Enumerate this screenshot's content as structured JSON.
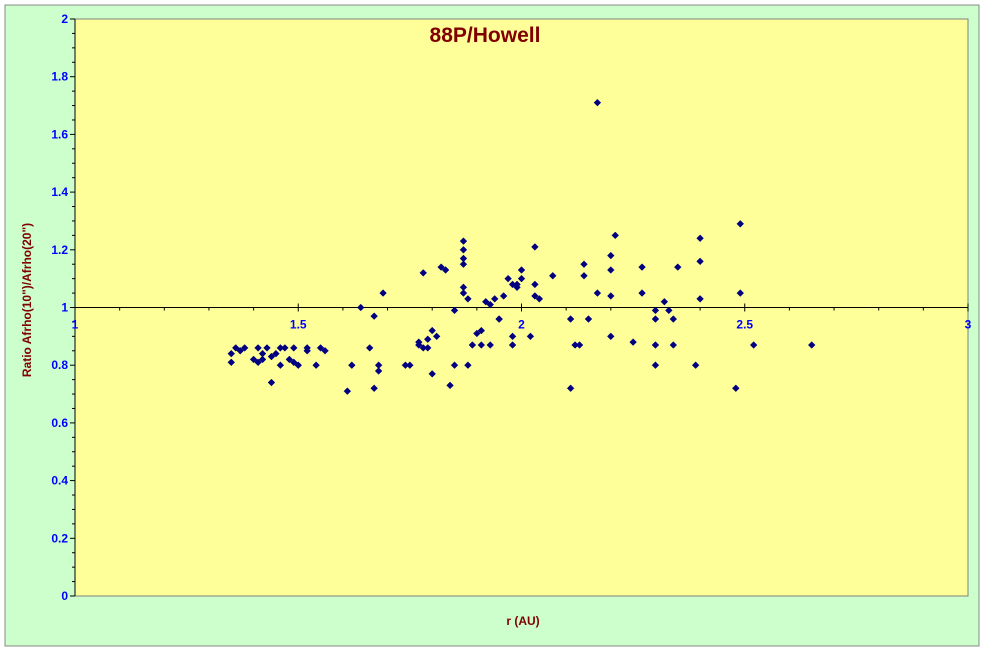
{
  "colors": {
    "outer_background": "#ccffcc",
    "plot_background": "#ffff99",
    "axis_label": "#800000",
    "tick_label": "#0000ff",
    "marker": "#000080",
    "reference_line": "#000000"
  },
  "chart_data": {
    "type": "scatter",
    "title": "88P/Howell",
    "xlabel": "r (AU)",
    "ylabel": "Ratio Afrho(10\")/Afrho(20\")",
    "xlim": [
      1,
      3
    ],
    "ylim": [
      0,
      2
    ],
    "x_ticks": [
      {
        "value": 1,
        "label": "1"
      },
      {
        "value": 1.5,
        "label": "1.5"
      },
      {
        "value": 2,
        "label": "2"
      },
      {
        "value": 2.5,
        "label": "2.5"
      },
      {
        "value": 3,
        "label": "3"
      }
    ],
    "y_ticks": [
      {
        "value": 0,
        "label": "0"
      },
      {
        "value": 0.2,
        "label": "0.2"
      },
      {
        "value": 0.4,
        "label": "0.4"
      },
      {
        "value": 0.6,
        "label": "0.6"
      },
      {
        "value": 0.8,
        "label": "0.8"
      },
      {
        "value": 1,
        "label": "1"
      },
      {
        "value": 1.2,
        "label": "1.2"
      },
      {
        "value": 1.4,
        "label": "1.4"
      },
      {
        "value": 1.6,
        "label": "1.6"
      },
      {
        "value": 1.8,
        "label": "1.8"
      },
      {
        "value": 2,
        "label": "2"
      }
    ],
    "x_axis_crosses_at_y": 1,
    "grid": false,
    "legend": "none",
    "marker": "diamond",
    "points": [
      {
        "x": 1.35,
        "y": 0.81
      },
      {
        "x": 1.35,
        "y": 0.84
      },
      {
        "x": 1.36,
        "y": 0.86
      },
      {
        "x": 1.37,
        "y": 0.85
      },
      {
        "x": 1.38,
        "y": 0.86
      },
      {
        "x": 1.4,
        "y": 0.82
      },
      {
        "x": 1.41,
        "y": 0.81
      },
      {
        "x": 1.41,
        "y": 0.86
      },
      {
        "x": 1.42,
        "y": 0.84
      },
      {
        "x": 1.42,
        "y": 0.82
      },
      {
        "x": 1.43,
        "y": 0.86
      },
      {
        "x": 1.44,
        "y": 0.83
      },
      {
        "x": 1.44,
        "y": 0.74
      },
      {
        "x": 1.45,
        "y": 0.84
      },
      {
        "x": 1.46,
        "y": 0.86
      },
      {
        "x": 1.46,
        "y": 0.8
      },
      {
        "x": 1.47,
        "y": 0.86
      },
      {
        "x": 1.48,
        "y": 0.82
      },
      {
        "x": 1.49,
        "y": 0.86
      },
      {
        "x": 1.49,
        "y": 0.81
      },
      {
        "x": 1.5,
        "y": 0.8
      },
      {
        "x": 1.52,
        "y": 0.86
      },
      {
        "x": 1.52,
        "y": 0.85
      },
      {
        "x": 1.54,
        "y": 0.8
      },
      {
        "x": 1.55,
        "y": 0.86
      },
      {
        "x": 1.56,
        "y": 0.85
      },
      {
        "x": 1.61,
        "y": 0.71
      },
      {
        "x": 1.62,
        "y": 0.8
      },
      {
        "x": 1.64,
        "y": 1.0
      },
      {
        "x": 1.66,
        "y": 0.86
      },
      {
        "x": 1.67,
        "y": 0.97
      },
      {
        "x": 1.67,
        "y": 0.72
      },
      {
        "x": 1.68,
        "y": 0.78
      },
      {
        "x": 1.68,
        "y": 0.8
      },
      {
        "x": 1.69,
        "y": 1.05
      },
      {
        "x": 1.74,
        "y": 0.8
      },
      {
        "x": 1.75,
        "y": 0.8
      },
      {
        "x": 1.77,
        "y": 0.87
      },
      {
        "x": 1.77,
        "y": 0.88
      },
      {
        "x": 1.78,
        "y": 1.12
      },
      {
        "x": 1.78,
        "y": 0.86
      },
      {
        "x": 1.79,
        "y": 0.89
      },
      {
        "x": 1.79,
        "y": 0.86
      },
      {
        "x": 1.8,
        "y": 0.92
      },
      {
        "x": 1.8,
        "y": 0.77
      },
      {
        "x": 1.81,
        "y": 0.9
      },
      {
        "x": 1.82,
        "y": 1.14
      },
      {
        "x": 1.83,
        "y": 1.13
      },
      {
        "x": 1.84,
        "y": 0.73
      },
      {
        "x": 1.85,
        "y": 0.8
      },
      {
        "x": 1.85,
        "y": 0.99
      },
      {
        "x": 1.87,
        "y": 1.23
      },
      {
        "x": 1.87,
        "y": 1.2
      },
      {
        "x": 1.87,
        "y": 1.17
      },
      {
        "x": 1.87,
        "y": 1.15
      },
      {
        "x": 1.87,
        "y": 1.07
      },
      {
        "x": 1.87,
        "y": 1.05
      },
      {
        "x": 1.88,
        "y": 1.03
      },
      {
        "x": 1.88,
        "y": 0.8
      },
      {
        "x": 1.89,
        "y": 0.87
      },
      {
        "x": 1.9,
        "y": 0.91
      },
      {
        "x": 1.91,
        "y": 0.92
      },
      {
        "x": 1.91,
        "y": 0.87
      },
      {
        "x": 1.92,
        "y": 1.02
      },
      {
        "x": 1.93,
        "y": 1.01
      },
      {
        "x": 1.93,
        "y": 0.87
      },
      {
        "x": 1.94,
        "y": 1.03
      },
      {
        "x": 1.95,
        "y": 0.96
      },
      {
        "x": 1.95,
        "y": 0.96
      },
      {
        "x": 1.96,
        "y": 1.04
      },
      {
        "x": 1.97,
        "y": 1.1
      },
      {
        "x": 1.98,
        "y": 1.08
      },
      {
        "x": 1.98,
        "y": 0.87
      },
      {
        "x": 1.98,
        "y": 0.9
      },
      {
        "x": 1.99,
        "y": 1.07
      },
      {
        "x": 1.99,
        "y": 1.08
      },
      {
        "x": 2.0,
        "y": 1.13
      },
      {
        "x": 2.0,
        "y": 1.1
      },
      {
        "x": 2.02,
        "y": 0.9
      },
      {
        "x": 2.03,
        "y": 1.21
      },
      {
        "x": 2.03,
        "y": 1.08
      },
      {
        "x": 2.03,
        "y": 1.04
      },
      {
        "x": 2.04,
        "y": 1.03
      },
      {
        "x": 2.07,
        "y": 1.11
      },
      {
        "x": 2.11,
        "y": 0.72
      },
      {
        "x": 2.11,
        "y": 0.96
      },
      {
        "x": 2.12,
        "y": 0.87
      },
      {
        "x": 2.13,
        "y": 0.87
      },
      {
        "x": 2.14,
        "y": 1.11
      },
      {
        "x": 2.14,
        "y": 1.15
      },
      {
        "x": 2.15,
        "y": 0.96
      },
      {
        "x": 2.17,
        "y": 1.05
      },
      {
        "x": 2.17,
        "y": 1.71
      },
      {
        "x": 2.2,
        "y": 1.18
      },
      {
        "x": 2.2,
        "y": 1.13
      },
      {
        "x": 2.2,
        "y": 1.04
      },
      {
        "x": 2.21,
        "y": 1.25
      },
      {
        "x": 2.2,
        "y": 0.9
      },
      {
        "x": 2.25,
        "y": 0.88
      },
      {
        "x": 2.27,
        "y": 1.14
      },
      {
        "x": 2.27,
        "y": 1.05
      },
      {
        "x": 2.3,
        "y": 0.99
      },
      {
        "x": 2.3,
        "y": 0.96
      },
      {
        "x": 2.3,
        "y": 0.87
      },
      {
        "x": 2.3,
        "y": 0.8
      },
      {
        "x": 2.32,
        "y": 1.02
      },
      {
        "x": 2.33,
        "y": 0.99
      },
      {
        "x": 2.34,
        "y": 0.96
      },
      {
        "x": 2.34,
        "y": 0.87
      },
      {
        "x": 2.35,
        "y": 1.14
      },
      {
        "x": 2.39,
        "y": 0.8
      },
      {
        "x": 2.4,
        "y": 1.24
      },
      {
        "x": 2.4,
        "y": 1.16
      },
      {
        "x": 2.4,
        "y": 1.03
      },
      {
        "x": 2.48,
        "y": 0.72
      },
      {
        "x": 2.49,
        "y": 1.29
      },
      {
        "x": 2.49,
        "y": 1.05
      },
      {
        "x": 2.52,
        "y": 0.87
      },
      {
        "x": 2.65,
        "y": 0.87
      }
    ]
  }
}
